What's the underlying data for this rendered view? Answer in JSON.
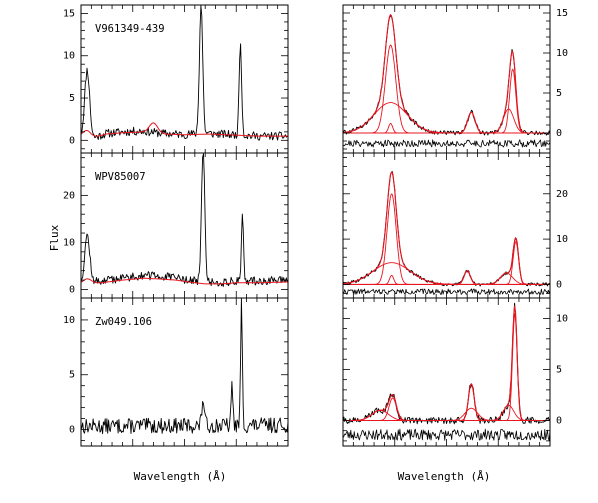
{
  "colors": {
    "observed": "#000000",
    "model": "#e8141e",
    "frame": "#000000"
  },
  "chart_data": {
    "type": "line",
    "xlabel_left": "Wavelength (Å)",
    "xlabel_right": "Wavelength (Å)",
    "ylabel": "Flux",
    "grid": false,
    "rows": [
      {
        "object": "V961349-439",
        "left": {
          "ylim": [
            -1.5,
            16
          ],
          "yticks": [
            0,
            5,
            10,
            15
          ],
          "peaks": [
            {
              "x": 0.03,
              "height": 8.0,
              "width": 0.012
            },
            {
              "x": 0.58,
              "height": 15.2,
              "width": 0.008
            },
            {
              "x": 0.77,
              "height": 11.0,
              "width": 0.006
            }
          ],
          "continuum": [
            [
              0.0,
              0.5
            ],
            [
              0.05,
              0.2
            ],
            [
              0.12,
              0.8
            ],
            [
              0.2,
              1.0
            ],
            [
              0.3,
              1.1
            ],
            [
              0.4,
              0.8
            ],
            [
              0.5,
              0.7
            ],
            [
              0.62,
              0.8
            ],
            [
              0.7,
              0.7
            ],
            [
              0.85,
              0.5
            ],
            [
              1.0,
              0.5
            ]
          ],
          "model_peaks": [
            {
              "x": 0.03,
              "height": 0.8,
              "width": 0.02
            },
            {
              "x": 0.35,
              "height": 1.2,
              "width": 0.02
            }
          ],
          "model_continuum": 0.1,
          "noise": 0.5,
          "seed": 11
        },
        "right": {
          "ylim": [
            -2.5,
            16
          ],
          "yticks": [
            0,
            5,
            10,
            15
          ],
          "total": [
            {
              "x": 0.23,
              "height": 11.0,
              "width": 0.025
            },
            {
              "x": 0.23,
              "height": 3.8,
              "width": 0.08
            },
            {
              "x": 0.62,
              "height": 2.6,
              "width": 0.018
            },
            {
              "x": 0.82,
              "height": 8.0,
              "width": 0.015
            },
            {
              "x": 0.8,
              "height": 3.0,
              "width": 0.025
            }
          ],
          "components": [
            {
              "x": 0.23,
              "height": 11.0,
              "width": 0.025
            },
            {
              "x": 0.23,
              "height": 3.8,
              "width": 0.08
            },
            {
              "x": 0.23,
              "height": 1.2,
              "width": 0.01
            },
            {
              "x": 0.62,
              "height": 2.6,
              "width": 0.018
            },
            {
              "x": 0.82,
              "height": 8.0,
              "width": 0.015
            },
            {
              "x": 0.8,
              "height": 3.0,
              "width": 0.025
            }
          ],
          "residual_offset": -1.3,
          "residual_noise": 0.45,
          "seed": 21
        }
      },
      {
        "object": "WPV85007",
        "left": {
          "ylim": [
            -1.8,
            29
          ],
          "yticks": [
            0,
            10,
            20
          ],
          "peaks": [
            {
              "x": 0.03,
              "height": 10.0,
              "width": 0.012
            },
            {
              "x": 0.59,
              "height": 28.0,
              "width": 0.008
            },
            {
              "x": 0.78,
              "height": 14.5,
              "width": 0.005
            }
          ],
          "continuum": [
            [
              0.0,
              1.5
            ],
            [
              0.1,
              1.8
            ],
            [
              0.2,
              2.5
            ],
            [
              0.3,
              3.0
            ],
            [
              0.38,
              2.8
            ],
            [
              0.46,
              2.5
            ],
            [
              0.52,
              2.0
            ],
            [
              0.6,
              1.5
            ],
            [
              0.68,
              1.5
            ],
            [
              0.75,
              1.8
            ],
            [
              0.85,
              1.8
            ],
            [
              1.0,
              2.0
            ]
          ],
          "model_peaks": [
            {
              "x": 0.03,
              "height": 1.0,
              "width": 0.02
            }
          ],
          "model_continuum": 0.0,
          "noise": 0.9,
          "seed": 12
        },
        "right": {
          "ylim": [
            -3.0,
            29
          ],
          "yticks": [
            0,
            10,
            20
          ],
          "total": [
            {
              "x": 0.235,
              "height": 20.0,
              "width": 0.022
            },
            {
              "x": 0.235,
              "height": 4.8,
              "width": 0.09
            },
            {
              "x": 0.6,
              "height": 3.0,
              "width": 0.015
            },
            {
              "x": 0.835,
              "height": 9.5,
              "width": 0.013
            },
            {
              "x": 0.79,
              "height": 2.5,
              "width": 0.03
            }
          ],
          "components": [
            {
              "x": 0.235,
              "height": 20.0,
              "width": 0.022
            },
            {
              "x": 0.235,
              "height": 4.8,
              "width": 0.09
            },
            {
              "x": 0.235,
              "height": 2.0,
              "width": 0.01
            },
            {
              "x": 0.6,
              "height": 3.0,
              "width": 0.015
            },
            {
              "x": 0.835,
              "height": 9.5,
              "width": 0.013
            },
            {
              "x": 0.79,
              "height": 2.5,
              "width": 0.03
            }
          ],
          "residual_offset": -1.6,
          "residual_noise": 0.6,
          "seed": 22
        }
      },
      {
        "object": "Zw049.106",
        "left": {
          "ylim": [
            -1.5,
            12
          ],
          "yticks": [
            0,
            5,
            10
          ],
          "peaks": [
            {
              "x": 0.59,
              "height": 2.5,
              "width": 0.006
            },
            {
              "x": 0.73,
              "height": 3.8,
              "width": 0.004
            },
            {
              "x": 0.775,
              "height": 11.5,
              "width": 0.004
            }
          ],
          "continuum": [
            [
              0.0,
              0.3
            ],
            [
              1.0,
              0.4
            ]
          ],
          "model_peaks": [],
          "model_continuum": null,
          "noise": 0.7,
          "seed": 13
        },
        "right": {
          "ylim": [
            -2.5,
            12
          ],
          "yticks": [
            0,
            5,
            10
          ],
          "total": [
            {
              "x": 0.24,
              "height": 2.2,
              "width": 0.018
            },
            {
              "x": 0.18,
              "height": 1.0,
              "width": 0.04
            },
            {
              "x": 0.62,
              "height": 3.6,
              "width": 0.014
            },
            {
              "x": 0.83,
              "height": 10.5,
              "width": 0.011
            },
            {
              "x": 0.8,
              "height": 1.5,
              "width": 0.025
            }
          ],
          "components": [
            {
              "x": 0.24,
              "height": 2.2,
              "width": 0.018
            },
            {
              "x": 0.18,
              "height": 1.0,
              "width": 0.04
            },
            {
              "x": 0.62,
              "height": 3.6,
              "width": 0.014
            },
            {
              "x": 0.62,
              "height": 1.2,
              "width": 0.03
            },
            {
              "x": 0.83,
              "height": 10.5,
              "width": 0.011
            },
            {
              "x": 0.8,
              "height": 1.5,
              "width": 0.025
            }
          ],
          "residual_offset": -1.4,
          "residual_noise": 0.55,
          "seed": 23
        }
      }
    ]
  }
}
